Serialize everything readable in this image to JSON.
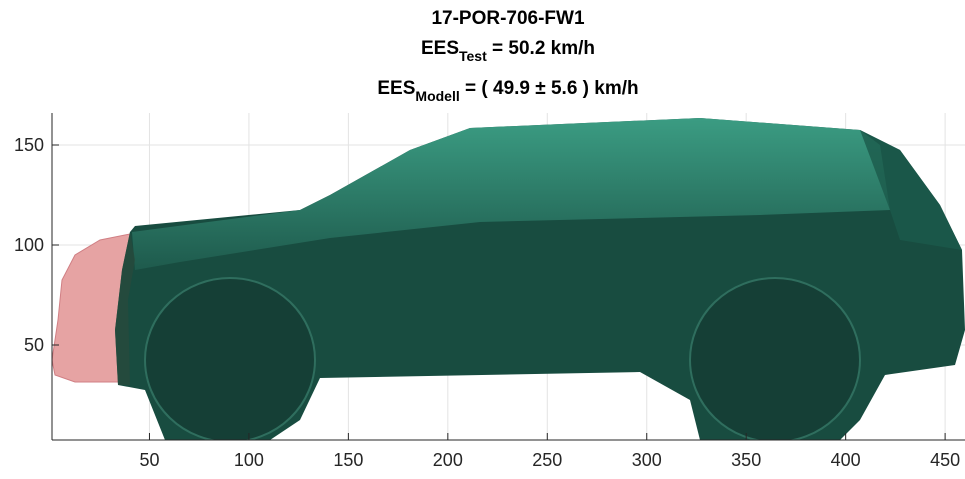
{
  "chart_data": {
    "type": "image",
    "title": [
      "17-POR-706-FW1",
      {
        "main": "EES",
        "sub": "Test",
        "rest": " = 50.2 km/h"
      },
      {
        "main": "EES",
        "sub": "Modell",
        "rest": " = ( 49.9 ± 5.6 ) km/h"
      }
    ],
    "xlim": [
      1,
      460
    ],
    "ylim": [
      2.5,
      166
    ],
    "xticks": [
      50,
      100,
      150,
      200,
      250,
      300,
      350,
      400,
      450
    ],
    "yticks": [
      50,
      100,
      150
    ],
    "grid": true
  }
}
